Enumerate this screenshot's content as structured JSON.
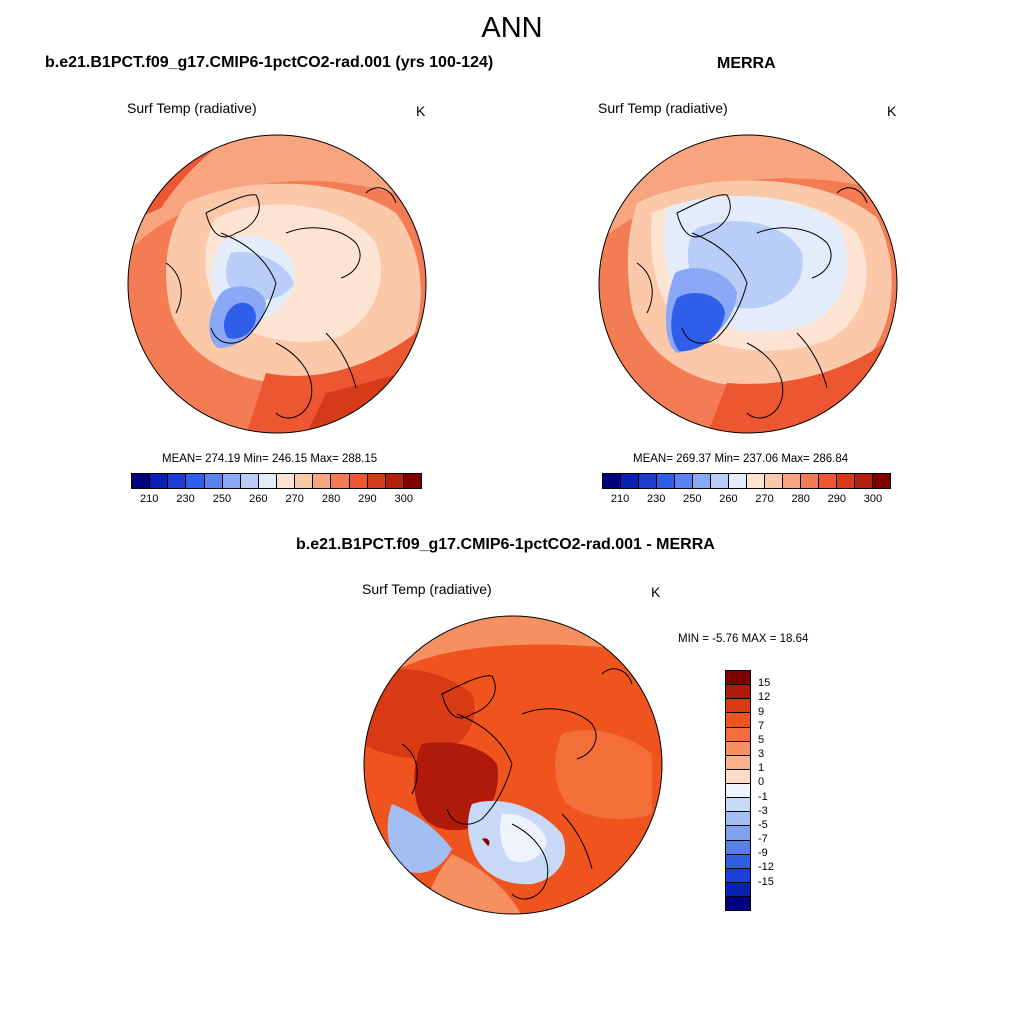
{
  "title": "ANN",
  "panels": [
    {
      "id": "model",
      "title": "b.e21.B1PCT.f09_g17.CMIP6-1pctCO2-rad.001 (yrs 100-124)",
      "variable": "Surf Temp (radiative)",
      "units": "K",
      "stats_text": "MEAN= 274.19  Min= 246.15  Max= 288.15"
    },
    {
      "id": "obs",
      "title": "MERRA",
      "variable": "Surf Temp (radiative)",
      "units": "K",
      "stats_text": "MEAN= 269.37  Min= 237.06  Max= 286.84"
    },
    {
      "id": "diff",
      "title": "b.e21.B1PCT.f09_g17.CMIP6-1pctCO2-rad.001 - MERRA",
      "variable": "Surf Temp (radiative)",
      "units": "K",
      "stats_text": "MIN =  -5.76 MAX =  18.64"
    }
  ],
  "chart_data": [
    {
      "type": "heatmap",
      "projection": "north polar stereographic",
      "title": "b.e21.B1PCT.f09_g17.CMIP6-1pctCO2-rad.001 (yrs 100-124)",
      "variable": "Surf Temp (radiative)",
      "units": "K",
      "mean": 274.19,
      "min": 246.15,
      "max": 288.15,
      "colorbar": {
        "orientation": "horizontal",
        "tick_labels": [
          "210",
          "230",
          "250",
          "260",
          "270",
          "280",
          "290",
          "300"
        ],
        "colors": [
          "#000080",
          "#0a1fb4",
          "#1e3cd2",
          "#2f5fe8",
          "#5a82f0",
          "#8aa8f5",
          "#b8cdf8",
          "#e3ecfb",
          "#fde4d2",
          "#fbc8aa",
          "#f8a47e",
          "#f47c54",
          "#ec5630",
          "#d63a18",
          "#b0200c",
          "#800000"
        ]
      }
    },
    {
      "type": "heatmap",
      "projection": "north polar stereographic",
      "title": "MERRA",
      "variable": "Surf Temp (radiative)",
      "units": "K",
      "mean": 269.37,
      "min": 237.06,
      "max": 286.84,
      "colorbar": {
        "orientation": "horizontal",
        "tick_labels": [
          "210",
          "230",
          "250",
          "260",
          "270",
          "280",
          "290",
          "300"
        ],
        "colors": [
          "#000080",
          "#0a1fb4",
          "#1e3cd2",
          "#2f5fe8",
          "#5a82f0",
          "#8aa8f5",
          "#b8cdf8",
          "#e3ecfb",
          "#fde4d2",
          "#fbc8aa",
          "#f8a47e",
          "#f47c54",
          "#ec5630",
          "#d63a18",
          "#b0200c",
          "#800000"
        ]
      }
    },
    {
      "type": "heatmap",
      "projection": "north polar stereographic",
      "title": "b.e21.B1PCT.f09_g17.CMIP6-1pctCO2-rad.001 - MERRA",
      "variable": "Surf Temp (radiative)",
      "units": "K",
      "min": -5.76,
      "max": 18.64,
      "colorbar": {
        "orientation": "vertical",
        "tick_labels": [
          "15",
          "12",
          "9",
          "7",
          "5",
          "3",
          "1",
          "0",
          "-1",
          "-3",
          "-5",
          "-7",
          "-9",
          "-12",
          "-15"
        ],
        "colors": [
          "#800000",
          "#b01a0a",
          "#d83a14",
          "#f0541e",
          "#f46e3a",
          "#f79060",
          "#f9b28e",
          "#fcdcc4",
          "#eef3fc",
          "#c8d9f7",
          "#a2bef2",
          "#7fa2ee",
          "#5580ea",
          "#2f5fe6",
          "#1a40d8",
          "#0a22b0",
          "#000080"
        ]
      }
    }
  ]
}
